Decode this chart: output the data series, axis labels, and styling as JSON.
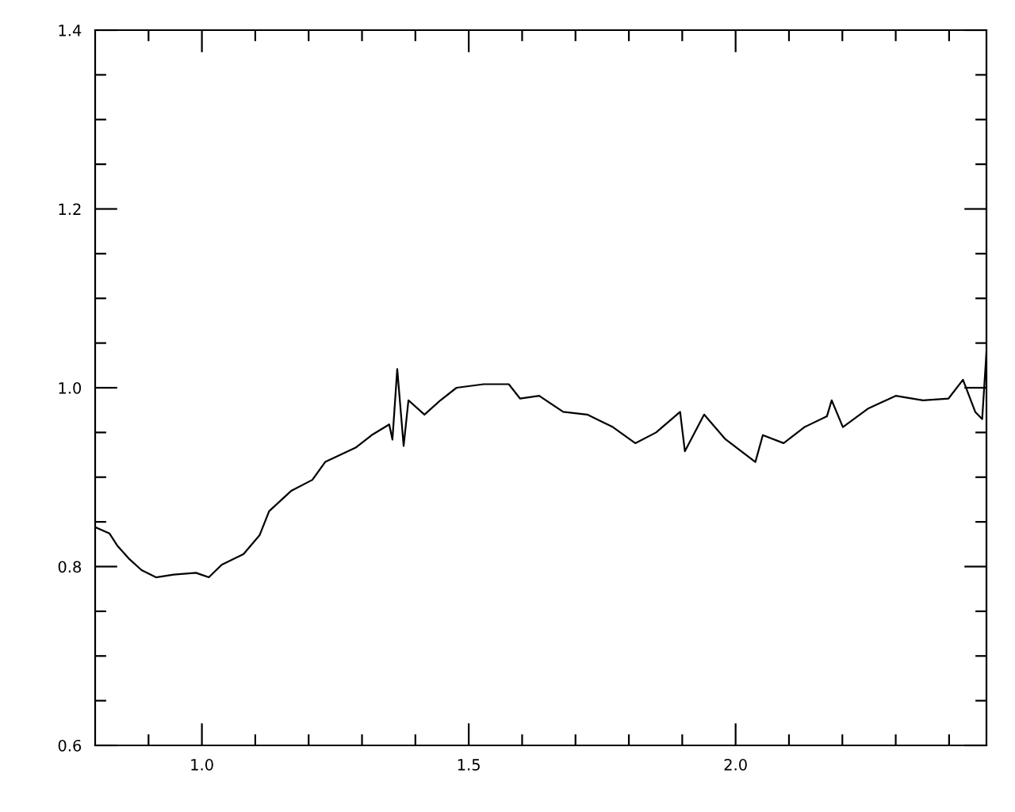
{
  "chart_data": {
    "type": "line",
    "x": [
      0.8,
      0.827,
      0.842,
      0.863,
      0.887,
      0.914,
      0.947,
      0.989,
      1.013,
      1.037,
      1.078,
      1.108,
      1.126,
      1.168,
      1.207,
      1.231,
      1.288,
      1.318,
      1.351,
      1.357,
      1.366,
      1.378,
      1.387,
      1.417,
      1.447,
      1.477,
      1.528,
      1.575,
      1.596,
      1.632,
      1.677,
      1.722,
      1.77,
      1.812,
      1.851,
      1.896,
      1.905,
      1.941,
      1.98,
      2.037,
      2.051,
      2.09,
      2.129,
      2.171,
      2.18,
      2.201,
      2.249,
      2.3,
      2.351,
      2.399,
      2.426,
      2.449,
      2.462,
      2.47
    ],
    "values": [
      0.844,
      0.837,
      0.823,
      0.809,
      0.796,
      0.788,
      0.791,
      0.793,
      0.788,
      0.802,
      0.814,
      0.835,
      0.862,
      0.885,
      0.897,
      0.917,
      0.933,
      0.947,
      0.959,
      0.942,
      1.021,
      0.935,
      0.986,
      0.97,
      0.986,
      1.0,
      1.004,
      1.004,
      0.988,
      0.991,
      0.973,
      0.97,
      0.956,
      0.938,
      0.95,
      0.973,
      0.929,
      0.97,
      0.943,
      0.917,
      0.947,
      0.938,
      0.956,
      0.968,
      0.986,
      0.956,
      0.977,
      0.991,
      0.986,
      0.988,
      1.009,
      0.973,
      0.965,
      1.04
    ],
    "color": "#000000",
    "xlim": [
      0.8,
      2.47
    ],
    "ylim": [
      0.6,
      1.4
    ],
    "xticks": [
      {
        "value": 0.9,
        "label": null
      },
      {
        "value": 1.0,
        "label": "1.0"
      },
      {
        "value": 1.1,
        "label": null
      },
      {
        "value": 1.2,
        "label": null
      },
      {
        "value": 1.3,
        "label": null
      },
      {
        "value": 1.4,
        "label": null
      },
      1.5,
      {
        "value": 1.6,
        "label": null
      },
      {
        "value": 1.7,
        "label": null
      },
      {
        "value": 1.8,
        "label": null
      },
      {
        "value": 1.9,
        "label": null
      },
      {
        "value": 2.0,
        "label": "2.0"
      },
      {
        "value": 2.1,
        "label": null
      },
      {
        "value": 2.2,
        "label": null
      },
      {
        "value": 2.3,
        "label": null
      },
      {
        "value": 2.4,
        "label": null
      }
    ],
    "yticks": [
      0.6,
      {
        "value": 0.65,
        "label": null
      },
      {
        "value": 0.7,
        "label": null
      },
      {
        "value": 0.75,
        "label": null
      },
      0.8,
      {
        "value": 0.85,
        "label": null
      },
      {
        "value": 0.9,
        "label": null
      },
      {
        "value": 0.95,
        "label": null
      },
      {
        "value": 1.0,
        "label": "1.0"
      },
      {
        "value": 1.05,
        "label": null
      },
      {
        "value": 1.1,
        "label": null
      },
      {
        "value": 1.15,
        "label": null
      },
      1.2,
      {
        "value": 1.25,
        "label": null
      },
      {
        "value": 1.3,
        "label": null
      },
      {
        "value": 1.35,
        "label": null
      },
      1.4
    ],
    "grid": false,
    "legend": false,
    "marker": "none",
    "line_style": "solid"
  }
}
